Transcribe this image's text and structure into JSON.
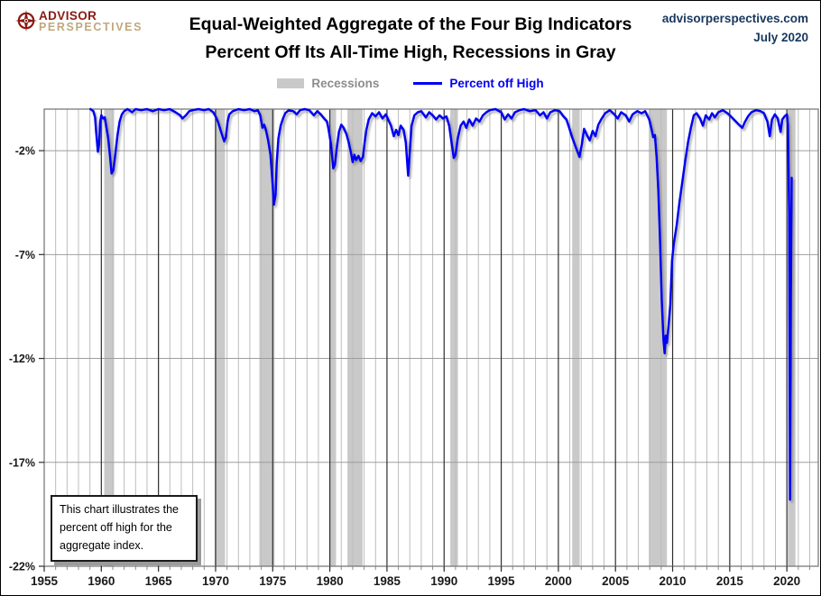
{
  "header": {
    "logo": {
      "line1": "ADVISOR",
      "line2": "PERSPECTIVES",
      "icon": "compass-rose-icon"
    },
    "title_line1": "Equal-Weighted Aggregate of the Four Big Indicators",
    "title_line2": "Percent Off Its All-Time High, Recessions in Gray",
    "site": "advisorperspectives.com",
    "date": "July 2020"
  },
  "legend": {
    "items": [
      {
        "label": "Recessions",
        "swatch": "gray-band",
        "color": "#c9c9c9"
      },
      {
        "label": "Percent off High",
        "swatch": "blue-line",
        "color": "#0000f2"
      }
    ]
  },
  "annotation": {
    "lines": [
      "This chart illustrates the",
      "percent off high for the",
      "aggregate index."
    ]
  },
  "chart_data": {
    "type": "line",
    "title": "Equal-Weighted Aggregate of the Four Big Indicators — Percent Off Its All-Time High",
    "xlabel": "",
    "ylabel": "",
    "x_range": [
      1955,
      2022.75
    ],
    "y_range": [
      -22,
      0
    ],
    "x_ticks_major": [
      1955,
      1960,
      1965,
      1970,
      1975,
      1980,
      1985,
      1990,
      1995,
      2000,
      2005,
      2010,
      2015,
      2020
    ],
    "x_minor_step": 1,
    "y_ticks": [
      {
        "label": "-2%",
        "v": -2
      },
      {
        "label": "-7%",
        "v": -7
      },
      {
        "label": "-12%",
        "v": -12
      },
      {
        "label": "-17%",
        "v": -17
      },
      {
        "label": "-22%",
        "v": -22
      }
    ],
    "grid": {
      "vertical_minor": true,
      "vertical_major": true,
      "horizontal": true
    },
    "legend_position": "top-center",
    "recession_bands": [
      [
        1960.25,
        1961.12
      ],
      [
        1969.92,
        1970.83
      ],
      [
        1973.83,
        1975.17
      ],
      [
        1980.0,
        1980.54
      ],
      [
        1981.54,
        1982.87
      ],
      [
        1990.54,
        1991.21
      ],
      [
        2001.21,
        2001.87
      ],
      [
        2007.92,
        2009.5
      ],
      [
        2020.08,
        2020.75
      ]
    ],
    "colors": {
      "line": "#0000f2",
      "recession": "#c9c9c9",
      "grid_minor": "#bdbdbd",
      "grid_major": "#2e2e2e",
      "grid_horizontal": "#9e9e9e",
      "frame": "#707070",
      "tick_label": "#1a1a1a"
    },
    "series": [
      {
        "name": "Percent off High",
        "color": "#0000f2",
        "points": [
          [
            1959.05,
            0
          ],
          [
            1959.3,
            -0.1
          ],
          [
            1959.45,
            -0.4
          ],
          [
            1959.55,
            -1.1
          ],
          [
            1959.7,
            -2.05
          ],
          [
            1959.8,
            -1.7
          ],
          [
            1959.9,
            -0.6
          ],
          [
            1960.0,
            -0.3
          ],
          [
            1960.15,
            -0.45
          ],
          [
            1960.3,
            -0.4
          ],
          [
            1960.45,
            -0.9
          ],
          [
            1960.6,
            -1.4
          ],
          [
            1960.75,
            -2.2
          ],
          [
            1960.9,
            -3.1
          ],
          [
            1961.05,
            -2.95
          ],
          [
            1961.2,
            -2.3
          ],
          [
            1961.4,
            -1.3
          ],
          [
            1961.6,
            -0.6
          ],
          [
            1961.8,
            -0.25
          ],
          [
            1962.0,
            -0.1
          ],
          [
            1962.3,
            0
          ],
          [
            1962.7,
            -0.15
          ],
          [
            1963.0,
            0
          ],
          [
            1963.5,
            -0.05
          ],
          [
            1964.0,
            0
          ],
          [
            1964.5,
            -0.1
          ],
          [
            1965.0,
            0
          ],
          [
            1965.5,
            -0.05
          ],
          [
            1966.0,
            0
          ],
          [
            1966.5,
            -0.15
          ],
          [
            1966.9,
            -0.3
          ],
          [
            1967.1,
            -0.45
          ],
          [
            1967.4,
            -0.3
          ],
          [
            1967.7,
            -0.1
          ],
          [
            1968.0,
            -0.05
          ],
          [
            1968.5,
            0
          ],
          [
            1969.0,
            -0.05
          ],
          [
            1969.4,
            0
          ],
          [
            1969.8,
            -0.15
          ],
          [
            1970.0,
            -0.35
          ],
          [
            1970.2,
            -0.6
          ],
          [
            1970.4,
            -0.95
          ],
          [
            1970.6,
            -1.3
          ],
          [
            1970.75,
            -1.55
          ],
          [
            1970.9,
            -1.35
          ],
          [
            1971.05,
            -0.6
          ],
          [
            1971.2,
            -0.25
          ],
          [
            1971.5,
            -0.1
          ],
          [
            1972.0,
            0
          ],
          [
            1972.5,
            -0.05
          ],
          [
            1973.0,
            0
          ],
          [
            1973.4,
            -0.1
          ],
          [
            1973.7,
            -0.05
          ],
          [
            1973.9,
            -0.3
          ],
          [
            1974.1,
            -0.9
          ],
          [
            1974.25,
            -0.75
          ],
          [
            1974.4,
            -1.0
          ],
          [
            1974.6,
            -1.5
          ],
          [
            1974.8,
            -2.2
          ],
          [
            1974.95,
            -3.3
          ],
          [
            1975.1,
            -4.6
          ],
          [
            1975.25,
            -4.1
          ],
          [
            1975.35,
            -2.6
          ],
          [
            1975.5,
            -1.4
          ],
          [
            1975.7,
            -0.8
          ],
          [
            1975.9,
            -0.45
          ],
          [
            1976.1,
            -0.2
          ],
          [
            1976.4,
            -0.05
          ],
          [
            1976.8,
            -0.1
          ],
          [
            1977.1,
            -0.25
          ],
          [
            1977.4,
            -0.05
          ],
          [
            1977.8,
            0
          ],
          [
            1978.2,
            -0.05
          ],
          [
            1978.6,
            -0.3
          ],
          [
            1978.9,
            -0.1
          ],
          [
            1979.2,
            -0.25
          ],
          [
            1979.5,
            -0.45
          ],
          [
            1979.75,
            -0.6
          ],
          [
            1979.9,
            -1.0
          ],
          [
            1980.1,
            -1.7
          ],
          [
            1980.3,
            -2.85
          ],
          [
            1980.45,
            -2.65
          ],
          [
            1980.6,
            -1.9
          ],
          [
            1980.8,
            -1.1
          ],
          [
            1981.0,
            -0.75
          ],
          [
            1981.2,
            -0.9
          ],
          [
            1981.45,
            -1.2
          ],
          [
            1981.65,
            -1.6
          ],
          [
            1981.85,
            -2.1
          ],
          [
            1982.0,
            -2.55
          ],
          [
            1982.15,
            -2.2
          ],
          [
            1982.3,
            -2.45
          ],
          [
            1982.5,
            -2.25
          ],
          [
            1982.7,
            -2.5
          ],
          [
            1982.9,
            -2.3
          ],
          [
            1983.05,
            -1.6
          ],
          [
            1983.2,
            -1.0
          ],
          [
            1983.4,
            -0.5
          ],
          [
            1983.7,
            -0.2
          ],
          [
            1984.0,
            -0.35
          ],
          [
            1984.3,
            -0.15
          ],
          [
            1984.6,
            -0.45
          ],
          [
            1984.9,
            -0.25
          ],
          [
            1985.1,
            -0.5
          ],
          [
            1985.35,
            -0.8
          ],
          [
            1985.6,
            -1.3
          ],
          [
            1985.8,
            -1.0
          ],
          [
            1986.0,
            -1.25
          ],
          [
            1986.2,
            -0.8
          ],
          [
            1986.45,
            -1.0
          ],
          [
            1986.65,
            -1.6
          ],
          [
            1986.85,
            -3.2
          ],
          [
            1987.0,
            -2.0
          ],
          [
            1987.15,
            -0.8
          ],
          [
            1987.4,
            -0.3
          ],
          [
            1987.7,
            -0.15
          ],
          [
            1988.0,
            -0.1
          ],
          [
            1988.4,
            -0.4
          ],
          [
            1988.7,
            -0.15
          ],
          [
            1989.0,
            -0.3
          ],
          [
            1989.3,
            -0.5
          ],
          [
            1989.6,
            -0.3
          ],
          [
            1989.9,
            -0.45
          ],
          [
            1990.2,
            -0.35
          ],
          [
            1990.45,
            -0.8
          ],
          [
            1990.65,
            -1.6
          ],
          [
            1990.85,
            -2.35
          ],
          [
            1991.0,
            -2.2
          ],
          [
            1991.2,
            -1.4
          ],
          [
            1991.45,
            -0.8
          ],
          [
            1991.7,
            -0.6
          ],
          [
            1991.95,
            -0.9
          ],
          [
            1992.2,
            -0.5
          ],
          [
            1992.5,
            -0.8
          ],
          [
            1992.8,
            -0.45
          ],
          [
            1993.1,
            -0.6
          ],
          [
            1993.4,
            -0.3
          ],
          [
            1993.7,
            -0.15
          ],
          [
            1994.0,
            -0.05
          ],
          [
            1994.5,
            0
          ],
          [
            1995.0,
            -0.15
          ],
          [
            1995.3,
            -0.5
          ],
          [
            1995.6,
            -0.25
          ],
          [
            1995.9,
            -0.45
          ],
          [
            1996.2,
            -0.15
          ],
          [
            1996.6,
            -0.05
          ],
          [
            1997.0,
            0
          ],
          [
            1997.5,
            -0.1
          ],
          [
            1998.0,
            -0.05
          ],
          [
            1998.4,
            -0.3
          ],
          [
            1998.7,
            -0.15
          ],
          [
            1999.0,
            -0.45
          ],
          [
            1999.3,
            -0.15
          ],
          [
            1999.7,
            -0.05
          ],
          [
            2000.1,
            -0.1
          ],
          [
            2000.45,
            -0.35
          ],
          [
            2000.7,
            -0.5
          ],
          [
            2000.95,
            -0.9
          ],
          [
            2001.2,
            -1.35
          ],
          [
            2001.5,
            -1.8
          ],
          [
            2001.85,
            -2.3
          ],
          [
            2002.05,
            -1.7
          ],
          [
            2002.25,
            -0.95
          ],
          [
            2002.5,
            -1.25
          ],
          [
            2002.75,
            -1.5
          ],
          [
            2003.0,
            -1.05
          ],
          [
            2003.25,
            -1.3
          ],
          [
            2003.5,
            -0.75
          ],
          [
            2003.8,
            -0.45
          ],
          [
            2004.1,
            -0.2
          ],
          [
            2004.5,
            -0.05
          ],
          [
            2004.9,
            -0.25
          ],
          [
            2005.2,
            -0.45
          ],
          [
            2005.5,
            -0.15
          ],
          [
            2005.9,
            -0.3
          ],
          [
            2006.2,
            -0.6
          ],
          [
            2006.5,
            -0.25
          ],
          [
            2006.9,
            -0.1
          ],
          [
            2007.3,
            -0.2
          ],
          [
            2007.6,
            -0.1
          ],
          [
            2007.95,
            -0.5
          ],
          [
            2008.15,
            -0.95
          ],
          [
            2008.3,
            -1.35
          ],
          [
            2008.45,
            -1.25
          ],
          [
            2008.6,
            -2.3
          ],
          [
            2008.75,
            -3.9
          ],
          [
            2008.9,
            -6.3
          ],
          [
            2009.05,
            -9.2
          ],
          [
            2009.2,
            -11.1
          ],
          [
            2009.3,
            -11.75
          ],
          [
            2009.4,
            -10.9
          ],
          [
            2009.5,
            -11.25
          ],
          [
            2009.65,
            -10.4
          ],
          [
            2009.8,
            -9.4
          ],
          [
            2009.95,
            -7.3
          ],
          [
            2010.1,
            -6.5
          ],
          [
            2010.35,
            -5.6
          ],
          [
            2010.6,
            -4.5
          ],
          [
            2010.85,
            -3.5
          ],
          [
            2011.1,
            -2.5
          ],
          [
            2011.35,
            -1.6
          ],
          [
            2011.6,
            -0.9
          ],
          [
            2011.85,
            -0.3
          ],
          [
            2012.1,
            -0.2
          ],
          [
            2012.4,
            -0.45
          ],
          [
            2012.65,
            -0.8
          ],
          [
            2012.9,
            -0.3
          ],
          [
            2013.2,
            -0.5
          ],
          [
            2013.45,
            -0.2
          ],
          [
            2013.7,
            -0.4
          ],
          [
            2014.0,
            -0.15
          ],
          [
            2014.4,
            -0.05
          ],
          [
            2014.8,
            -0.2
          ],
          [
            2015.1,
            -0.35
          ],
          [
            2015.45,
            -0.55
          ],
          [
            2015.8,
            -0.75
          ],
          [
            2016.1,
            -0.9
          ],
          [
            2016.35,
            -0.6
          ],
          [
            2016.6,
            -0.35
          ],
          [
            2016.9,
            -0.15
          ],
          [
            2017.3,
            -0.05
          ],
          [
            2017.7,
            -0.1
          ],
          [
            2018.0,
            -0.2
          ],
          [
            2018.3,
            -0.6
          ],
          [
            2018.5,
            -1.3
          ],
          [
            2018.7,
            -0.5
          ],
          [
            2018.95,
            -0.25
          ],
          [
            2019.2,
            -0.45
          ],
          [
            2019.45,
            -1.1
          ],
          [
            2019.6,
            -0.5
          ],
          [
            2019.8,
            -0.35
          ],
          [
            2020.0,
            -0.25
          ],
          [
            2020.1,
            -0.8
          ],
          [
            2020.2,
            -5.0
          ],
          [
            2020.28,
            -18.8
          ],
          [
            2020.35,
            -9.0
          ],
          [
            2020.42,
            -3.3
          ]
        ]
      }
    ]
  }
}
